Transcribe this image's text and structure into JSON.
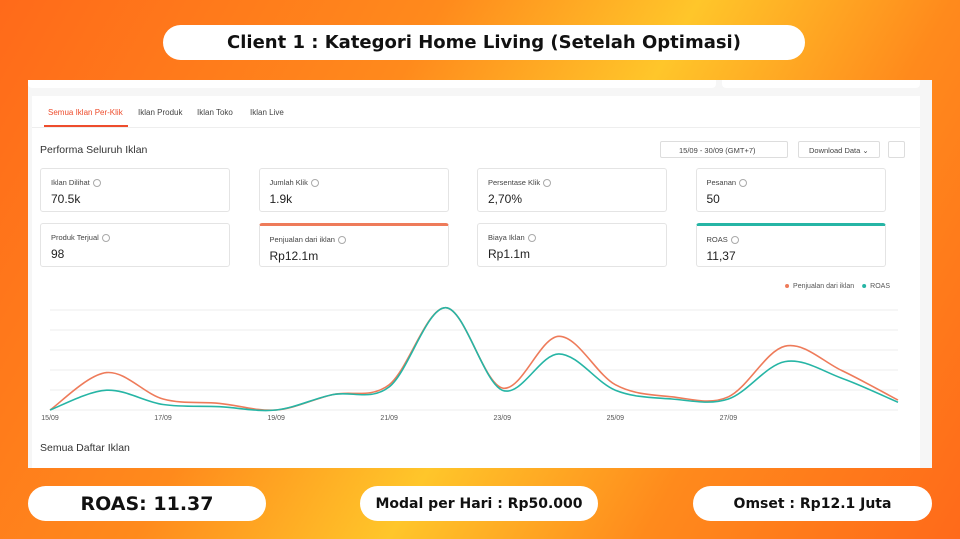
{
  "header": {
    "title": "Client 1 : Kategori Home Living (Setelah Optimasi)"
  },
  "tabs": [
    "Semua Iklan Per-Klik",
    "Iklan Produk",
    "Iklan Toko",
    "Iklan Live"
  ],
  "section_title": "Performa Seluruh Iklan",
  "date_range": "15/09 - 30/09 (GMT+7)",
  "download_button": "Download Data",
  "metrics": [
    {
      "label": "Iklan Dilihat",
      "value": "70.5k"
    },
    {
      "label": "Jumlah Klik",
      "value": "1.9k"
    },
    {
      "label": "Persentase Klik",
      "value": "2,70%"
    },
    {
      "label": "Pesanan",
      "value": "50"
    },
    {
      "label": "Produk Terjual",
      "value": "98"
    },
    {
      "label": "Penjualan dari iklan",
      "value": "Rp12.1m"
    },
    {
      "label": "Biaya Iklan",
      "value": "Rp1.1m"
    },
    {
      "label": "ROAS",
      "value": "11,37"
    }
  ],
  "chart_data": {
    "type": "line",
    "categories": [
      "15/09",
      null,
      "17/09",
      null,
      "19/09",
      null,
      "21/09",
      null,
      "23/09",
      null,
      "25/09",
      null,
      "27/09",
      null,
      null,
      null
    ],
    "series": [
      {
        "name": "Penjualan dari iklan",
        "color": "#ee7b5a",
        "values": [
          0,
          34,
          10,
          6,
          0,
          14,
          23,
          93,
          20,
          67,
          23,
          12,
          12,
          58,
          36,
          9
        ]
      },
      {
        "name": "ROAS",
        "color": "#26b5a5",
        "values": [
          0,
          18,
          5,
          3,
          0,
          14,
          21,
          93,
          18,
          51,
          18,
          10,
          10,
          44,
          29,
          7
        ]
      }
    ],
    "ylim": [
      0,
      100
    ],
    "grid": true,
    "legend": "top-right"
  },
  "list_title": "Semua Daftar Iklan",
  "footer": [
    "ROAS: 11.37",
    "Modal per Hari : Rp50.000",
    "Omset : Rp12.1 Juta"
  ]
}
